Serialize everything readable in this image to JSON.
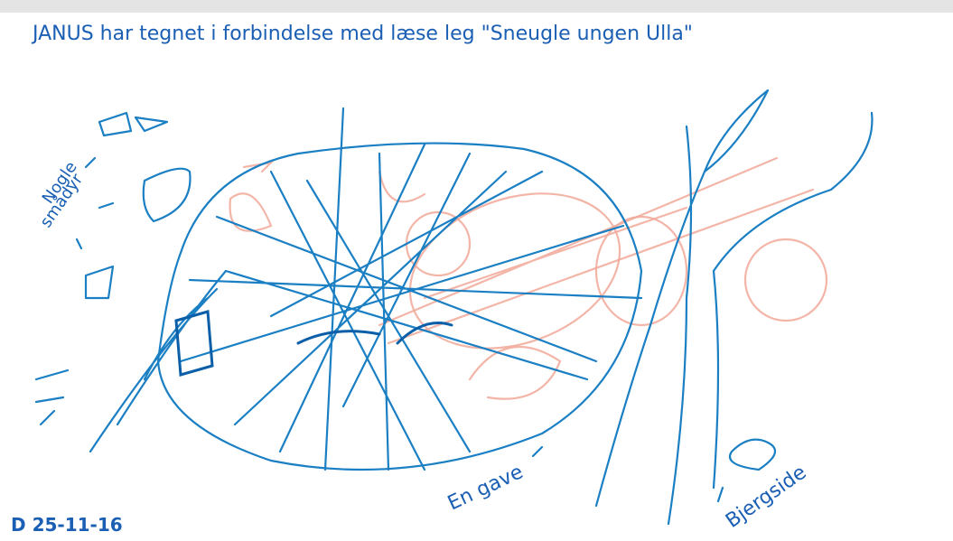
{
  "header": {
    "caption": "JANUS har tegnet i forbindelse med læse leg \"Sneugle ungen Ulla\""
  },
  "annotations": {
    "small_animals": [
      "Nogle",
      "smådyr"
    ],
    "gift": "En gave",
    "mountainside": "Bjergside"
  },
  "date": "D 25-11-16"
}
